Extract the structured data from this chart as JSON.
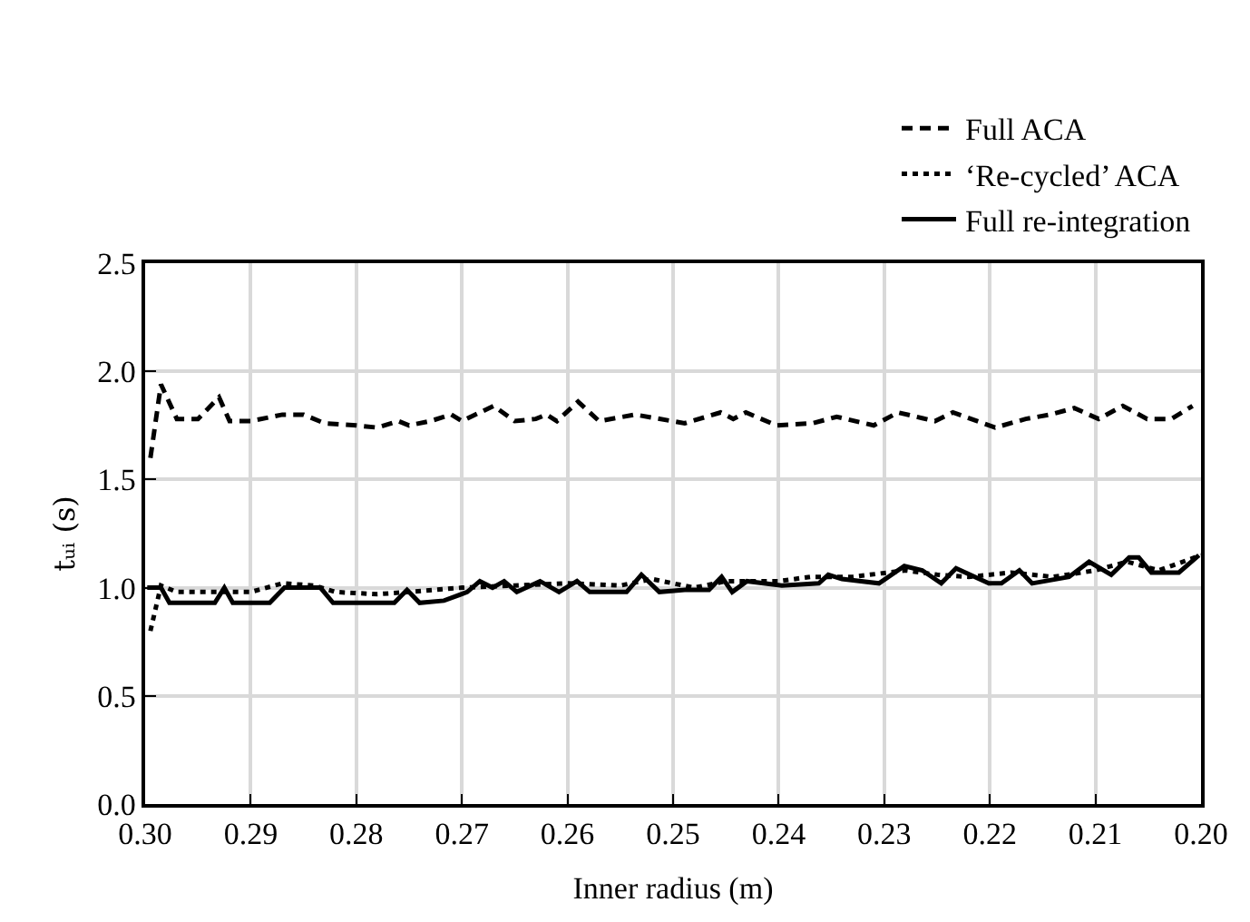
{
  "chart_data": {
    "type": "line",
    "xlabel": "Inner radius (m)",
    "ylabel": "tᵤᵢ (s)",
    "xlim": [
      0.3,
      0.2
    ],
    "xticks": [
      {
        "value": 0.3,
        "label": "0.30"
      },
      0.29,
      0.28,
      0.27,
      0.26,
      0.25,
      0.24,
      0.23,
      0.22,
      0.21,
      {
        "value": 0.2,
        "label": "0.20"
      }
    ],
    "ylim": [
      0,
      2.5
    ],
    "yticks": [
      {
        "value": 0,
        "label": "0.0"
      },
      0.5,
      {
        "value": 1,
        "label": "1.0"
      },
      1.5,
      {
        "value": 2,
        "label": "2.0"
      },
      2.5
    ],
    "grid": true,
    "legend": "top right",
    "series": [
      {
        "name": "Full ACA",
        "color": "#000000",
        "line_style": "dashed",
        "x": [
          0.2995,
          0.2985,
          0.297,
          0.295,
          0.293,
          0.292,
          0.29,
          0.287,
          0.285,
          0.283,
          0.28,
          0.278,
          0.276,
          0.275,
          0.273,
          0.271,
          0.27,
          0.267,
          0.265,
          0.263,
          0.262,
          0.261,
          0.259,
          0.257,
          0.2536,
          0.2489,
          0.2455,
          0.2443,
          0.2431,
          0.2402,
          0.2368,
          0.2345,
          0.231,
          0.2287,
          0.2252,
          0.2235,
          0.2195,
          0.2166,
          0.2143,
          0.212,
          0.2097,
          0.2074,
          0.2051,
          0.2028,
          0.2008
        ],
        "values": [
          1.6,
          1.94,
          1.78,
          1.78,
          1.88,
          1.77,
          1.77,
          1.8,
          1.8,
          1.76,
          1.75,
          1.74,
          1.77,
          1.75,
          1.77,
          1.8,
          1.77,
          1.84,
          1.77,
          1.78,
          1.8,
          1.77,
          1.86,
          1.77,
          1.8,
          1.76,
          1.81,
          1.78,
          1.81,
          1.75,
          1.76,
          1.79,
          1.75,
          1.81,
          1.77,
          1.81,
          1.74,
          1.78,
          1.8,
          1.83,
          1.78,
          1.84,
          1.78,
          1.78,
          1.84
        ]
      },
      {
        "name": "‘Re-cycled’ ACA",
        "color": "#000000",
        "line_style": "dotted",
        "x": [
          0.2995,
          0.2985,
          0.297,
          0.29,
          0.287,
          0.284,
          0.282,
          0.278,
          0.275,
          0.27,
          0.265,
          0.26,
          0.255,
          0.252,
          0.248,
          0.245,
          0.24,
          0.237,
          0.233,
          0.228,
          0.225,
          0.222,
          0.218,
          0.214,
          0.21,
          0.207,
          0.204,
          0.2
        ],
        "values": [
          0.8,
          1.01,
          0.98,
          0.98,
          1.02,
          1.01,
          0.98,
          0.97,
          0.98,
          1.0,
          1.01,
          1.02,
          1.01,
          1.04,
          1.0,
          1.03,
          1.03,
          1.05,
          1.05,
          1.08,
          1.06,
          1.05,
          1.07,
          1.05,
          1.08,
          1.12,
          1.08,
          1.15
        ]
      },
      {
        "name": "Full re-integration",
        "color": "#000000",
        "line_style": "solid",
        "x": [
          0.2998,
          0.2985,
          0.2977,
          0.2934,
          0.2925,
          0.2917,
          0.2882,
          0.2868,
          0.2834,
          0.2822,
          0.2764,
          0.2752,
          0.274,
          0.2717,
          0.2695,
          0.2683,
          0.2671,
          0.266,
          0.2648,
          0.2626,
          0.2608,
          0.2591,
          0.2579,
          0.2544,
          0.253,
          0.2513,
          0.2489,
          0.2466,
          0.2454,
          0.2444,
          0.243,
          0.2397,
          0.2362,
          0.2353,
          0.234,
          0.2305,
          0.2281,
          0.2264,
          0.2246,
          0.2232,
          0.2201,
          0.2189,
          0.2172,
          0.216,
          0.2125,
          0.2106,
          0.2085,
          0.2068,
          0.2059,
          0.2047,
          0.2021,
          0.2002
        ],
        "values": [
          1.0,
          1.0,
          0.93,
          0.93,
          1.0,
          0.93,
          0.93,
          1.0,
          1.0,
          0.93,
          0.93,
          0.99,
          0.93,
          0.94,
          0.98,
          1.03,
          1.0,
          1.03,
          0.98,
          1.03,
          0.98,
          1.03,
          0.98,
          0.98,
          1.06,
          0.98,
          0.99,
          0.99,
          1.05,
          0.98,
          1.03,
          1.01,
          1.02,
          1.06,
          1.04,
          1.02,
          1.1,
          1.08,
          1.02,
          1.09,
          1.02,
          1.02,
          1.08,
          1.02,
          1.05,
          1.12,
          1.06,
          1.14,
          1.14,
          1.07,
          1.07,
          1.15
        ]
      }
    ]
  }
}
